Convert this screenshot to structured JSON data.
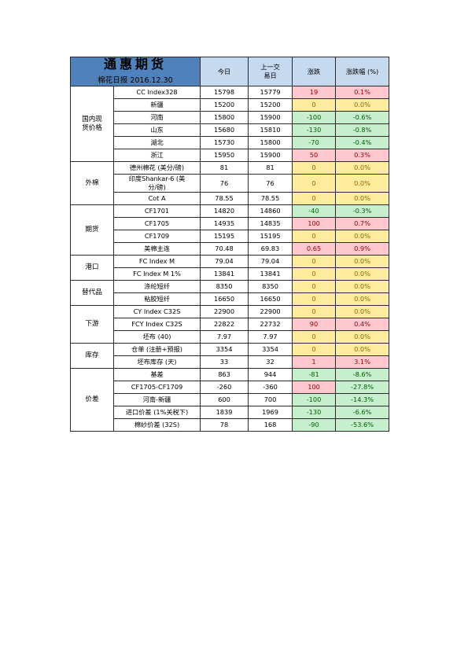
{
  "header": {
    "company": "通惠期货",
    "subtitle": "棉花日报 2016.12.30",
    "col_today": "今日",
    "col_prev": "上一交\n易日",
    "col_change": "涨跌",
    "col_pct": "涨跌幅 (%)"
  },
  "colors": {
    "logo_bg": "#4f81bd",
    "header_bg": "#c5d9ef",
    "up_bg": "#ffc7ce",
    "flat_bg": "#ffeb9c",
    "down_bg": "#c6efce"
  },
  "groups": [
    {
      "category": "国内现\n货价格",
      "rows": [
        {
          "item": "CC Index328",
          "today": "15798",
          "prev": "15779",
          "change": "19",
          "pct": "0.1%",
          "tone": "up"
        },
        {
          "item": "新疆",
          "today": "15200",
          "prev": "15200",
          "change": "0",
          "pct": "0.0%",
          "tone": "flat"
        },
        {
          "item": "河南",
          "today": "15800",
          "prev": "15900",
          "change": "-100",
          "pct": "-0.6%",
          "tone": "down"
        },
        {
          "item": "山东",
          "today": "15680",
          "prev": "15810",
          "change": "-130",
          "pct": "-0.8%",
          "tone": "down"
        },
        {
          "item": "湖北",
          "today": "15730",
          "prev": "15800",
          "change": "-70",
          "pct": "-0.4%",
          "tone": "down"
        },
        {
          "item": "浙江",
          "today": "15950",
          "prev": "15900",
          "change": "50",
          "pct": "0.3%",
          "tone": "up"
        }
      ]
    },
    {
      "category": "外棉",
      "rows": [
        {
          "item": "德州棉花 (美分/磅)",
          "today": "81",
          "prev": "81",
          "change": "0",
          "pct": "0.0%",
          "tone": "flat",
          "tall": true
        },
        {
          "item": "印度Shankar-6 (美\n分/磅)",
          "today": "76",
          "prev": "76",
          "change": "0",
          "pct": "0.0%",
          "tone": "flat",
          "tall": true
        },
        {
          "item": "Cot A",
          "today": "78.55",
          "prev": "78.55",
          "change": "0",
          "pct": "0.0%",
          "tone": "flat"
        }
      ]
    },
    {
      "category": "期货",
      "rows": [
        {
          "item": "CF1701",
          "today": "14820",
          "prev": "14860",
          "change": "-40",
          "pct": "-0.3%",
          "tone": "down"
        },
        {
          "item": "CF1705",
          "today": "14935",
          "prev": "14835",
          "change": "100",
          "pct": "0.7%",
          "tone": "up"
        },
        {
          "item": "CF1709",
          "today": "15195",
          "prev": "15195",
          "change": "0",
          "pct": "0.0%",
          "tone": "flat"
        },
        {
          "item": "美棉主连",
          "today": "70.48",
          "prev": "69.83",
          "change": "0.65",
          "pct": "0.9%",
          "tone": "up"
        }
      ]
    },
    {
      "category": "港口",
      "rows": [
        {
          "item": "FC Index M",
          "today": "79.04",
          "prev": "79.04",
          "change": "0",
          "pct": "0.0%",
          "tone": "flat"
        },
        {
          "item": "FC Index M 1%",
          "today": "13841",
          "prev": "13841",
          "change": "0",
          "pct": "0.0%",
          "tone": "flat"
        }
      ]
    },
    {
      "category": "替代品",
      "rows": [
        {
          "item": "涤纶短纤",
          "today": "8350",
          "prev": "8350",
          "change": "0",
          "pct": "0.0%",
          "tone": "flat"
        },
        {
          "item": "粘胶短纤",
          "today": "16650",
          "prev": "16650",
          "change": "0",
          "pct": "0.0%",
          "tone": "flat"
        }
      ]
    },
    {
      "category": "下游",
      "rows": [
        {
          "item": "CY Index C32S",
          "today": "22900",
          "prev": "22900",
          "change": "0",
          "pct": "0.0%",
          "tone": "flat"
        },
        {
          "item": "FCY Index C32S",
          "today": "22822",
          "prev": "22732",
          "change": "90",
          "pct": "0.4%",
          "tone": "up"
        },
        {
          "item": "坯布 (40)",
          "today": "7.97",
          "prev": "7.97",
          "change": "0",
          "pct": "0.0%",
          "tone": "flat"
        }
      ]
    },
    {
      "category": "库存",
      "rows": [
        {
          "item": "仓单 (注册+预报)",
          "today": "3354",
          "prev": "3354",
          "change": "0",
          "pct": "0.0%",
          "tone": "flat"
        },
        {
          "item": "坯布库存 (天)",
          "today": "33",
          "prev": "32",
          "change": "1",
          "pct": "3.1%",
          "tone": "up"
        }
      ]
    },
    {
      "category": "价差",
      "rows": [
        {
          "item": "基差",
          "today": "863",
          "prev": "944",
          "change": "-81",
          "pct": "-8.6%",
          "tone": "down"
        },
        {
          "item": "CF1705-CF1709",
          "today": "-260",
          "prev": "-360",
          "change": "100",
          "pct": "-27.8%",
          "tone": "mixed"
        },
        {
          "item": "河南-新疆",
          "today": "600",
          "prev": "700",
          "change": "-100",
          "pct": "-14.3%",
          "tone": "down"
        },
        {
          "item": "进口价差 (1%关税下)",
          "today": "1839",
          "prev": "1969",
          "change": "-130",
          "pct": "-6.6%",
          "tone": "down",
          "tall": true
        },
        {
          "item": "棉纱价差 (32S)",
          "today": "78",
          "prev": "168",
          "change": "-90",
          "pct": "-53.6%",
          "tone": "down"
        }
      ]
    }
  ]
}
